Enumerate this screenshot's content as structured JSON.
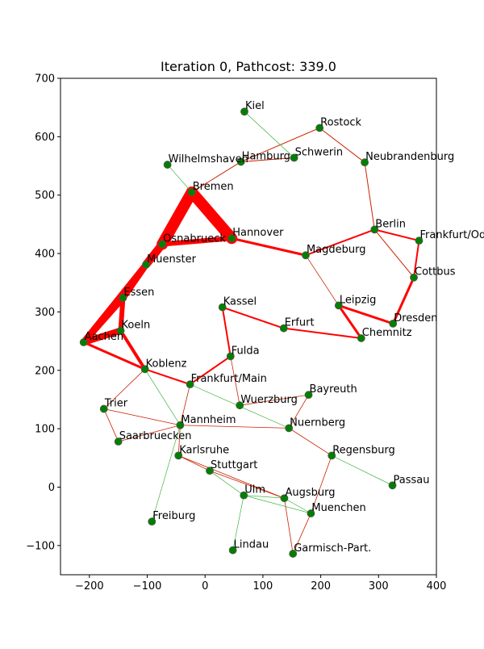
{
  "chart_data": {
    "type": "network",
    "title": "Iteration 0, Pathcost: 339.0",
    "xlim": [
      -250,
      400
    ],
    "ylim": [
      -150,
      700
    ],
    "x_ticks": [
      -200,
      -100,
      0,
      100,
      200,
      300,
      400
    ],
    "y_ticks": [
      -100,
      0,
      100,
      200,
      300,
      400,
      500,
      600,
      700
    ],
    "grid": false,
    "colors": {
      "node": "#008000",
      "node_edge": "#555555",
      "edge_main": "#cc2200",
      "edge_path": "#ff0000",
      "edge_green": "#22aa22"
    },
    "nodes": [
      {
        "name": "Kiel",
        "x": 68,
        "y": 643
      },
      {
        "name": "Rostock",
        "x": 198,
        "y": 615
      },
      {
        "name": "Hamburg",
        "x": 62,
        "y": 557
      },
      {
        "name": "Schwerin",
        "x": 154,
        "y": 564
      },
      {
        "name": "Neubrandenburg",
        "x": 276,
        "y": 556
      },
      {
        "name": "Wilhelmshaven",
        "x": -65,
        "y": 552
      },
      {
        "name": "Bremen",
        "x": -23,
        "y": 505
      },
      {
        "name": "Hannover",
        "x": 46,
        "y": 426
      },
      {
        "name": "Berlin",
        "x": 293,
        "y": 441
      },
      {
        "name": "Frankfurt/Oder",
        "x": 370,
        "y": 422
      },
      {
        "name": "Osnabrueck",
        "x": -74,
        "y": 416
      },
      {
        "name": "Magdeburg",
        "x": 174,
        "y": 397
      },
      {
        "name": "Muenster",
        "x": -102,
        "y": 381
      },
      {
        "name": "Cottbus",
        "x": 361,
        "y": 359
      },
      {
        "name": "Essen",
        "x": -142,
        "y": 324
      },
      {
        "name": "Kassel",
        "x": 30,
        "y": 308
      },
      {
        "name": "Leipzig",
        "x": 231,
        "y": 311
      },
      {
        "name": "Dresden",
        "x": 325,
        "y": 280
      },
      {
        "name": "Erfurt",
        "x": 136,
        "y": 272
      },
      {
        "name": "Chemnitz",
        "x": 270,
        "y": 255
      },
      {
        "name": "Koeln",
        "x": -146,
        "y": 268
      },
      {
        "name": "Aachen",
        "x": -210,
        "y": 248
      },
      {
        "name": "Fulda",
        "x": 44,
        "y": 224
      },
      {
        "name": "Koblenz",
        "x": -104,
        "y": 202
      },
      {
        "name": "Frankfurt/Main",
        "x": -26,
        "y": 176
      },
      {
        "name": "Bayreuth",
        "x": 179,
        "y": 158
      },
      {
        "name": "Wuerzburg",
        "x": 60,
        "y": 140
      },
      {
        "name": "Trier",
        "x": -175,
        "y": 134
      },
      {
        "name": "Mannheim",
        "x": -43,
        "y": 106
      },
      {
        "name": "Nuernberg",
        "x": 145,
        "y": 101
      },
      {
        "name": "Saarbruecken",
        "x": -150,
        "y": 78
      },
      {
        "name": "Karlsruhe",
        "x": -46,
        "y": 54
      },
      {
        "name": "Regensburg",
        "x": 219,
        "y": 54
      },
      {
        "name": "Stuttgart",
        "x": 8,
        "y": 28
      },
      {
        "name": "Passau",
        "x": 324,
        "y": 3
      },
      {
        "name": "Ulm",
        "x": 67,
        "y": -14
      },
      {
        "name": "Augsburg",
        "x": 137,
        "y": -19
      },
      {
        "name": "Muenchen",
        "x": 183,
        "y": -45
      },
      {
        "name": "Freiburg",
        "x": -92,
        "y": -59
      },
      {
        "name": "Lindau",
        "x": 48,
        "y": -108
      },
      {
        "name": "Garmisch-Part.",
        "x": 152,
        "y": -114
      }
    ],
    "edges": [
      {
        "from": "Bremen",
        "to": "Hannover",
        "w": 14,
        "c": "edge_path"
      },
      {
        "from": "Bremen",
        "to": "Osnabrueck",
        "w": 14,
        "c": "edge_path"
      },
      {
        "from": "Osnabrueck",
        "to": "Hannover",
        "w": 6,
        "c": "edge_path"
      },
      {
        "from": "Osnabrueck",
        "to": "Muenster",
        "w": 10,
        "c": "edge_path"
      },
      {
        "from": "Muenster",
        "to": "Essen",
        "w": 8,
        "c": "edge_path"
      },
      {
        "from": "Essen",
        "to": "Aachen",
        "w": 8,
        "c": "edge_path"
      },
      {
        "from": "Muenster",
        "to": "Aachen",
        "w": 8,
        "c": "edge_path"
      },
      {
        "from": "Aachen",
        "to": "Koeln",
        "w": 8,
        "c": "edge_path"
      },
      {
        "from": "Essen",
        "to": "Koeln",
        "w": 6,
        "c": "edge_path"
      },
      {
        "from": "Koeln",
        "to": "Koblenz",
        "w": 4,
        "c": "edge_path"
      },
      {
        "from": "Aachen",
        "to": "Koblenz",
        "w": 3,
        "c": "edge_path"
      },
      {
        "from": "Hannover",
        "to": "Magdeburg",
        "w": 3,
        "c": "edge_path"
      },
      {
        "from": "Magdeburg",
        "to": "Berlin",
        "w": 2,
        "c": "edge_path"
      },
      {
        "from": "Berlin",
        "to": "Frankfurt/Oder",
        "w": 2,
        "c": "edge_path"
      },
      {
        "from": "Frankfurt/Oder",
        "to": "Cottbus",
        "w": 2,
        "c": "edge_path"
      },
      {
        "from": "Cottbus",
        "to": "Dresden",
        "w": 3,
        "c": "edge_path"
      },
      {
        "from": "Dresden",
        "to": "Leipzig",
        "w": 3,
        "c": "edge_path"
      },
      {
        "from": "Leipzig",
        "to": "Chemnitz",
        "w": 3,
        "c": "edge_path"
      },
      {
        "from": "Chemnitz",
        "to": "Erfurt",
        "w": 2,
        "c": "edge_path"
      },
      {
        "from": "Erfurt",
        "to": "Kassel",
        "w": 2,
        "c": "edge_path"
      },
      {
        "from": "Kassel",
        "to": "Fulda",
        "w": 2,
        "c": "edge_path"
      },
      {
        "from": "Fulda",
        "to": "Frankfurt/Main",
        "w": 2,
        "c": "edge_path"
      },
      {
        "from": "Frankfurt/Main",
        "to": "Koblenz",
        "w": 2,
        "c": "edge_path"
      },
      {
        "from": "Berlin",
        "to": "Neubrandenburg",
        "w": 1,
        "c": "edge_main"
      },
      {
        "from": "Neubrandenburg",
        "to": "Rostock",
        "w": 1,
        "c": "edge_main"
      },
      {
        "from": "Rostock",
        "to": "Hamburg",
        "w": 1,
        "c": "edge_main"
      },
      {
        "from": "Hamburg",
        "to": "Schwerin",
        "w": 1,
        "c": "edge_main"
      },
      {
        "from": "Hamburg",
        "to": "Bremen",
        "w": 1,
        "c": "edge_main"
      },
      {
        "from": "Magdeburg",
        "to": "Leipzig",
        "w": 0.8,
        "c": "edge_main"
      },
      {
        "from": "Berlin",
        "to": "Cottbus",
        "w": 1,
        "c": "edge_main"
      },
      {
        "from": "Koblenz",
        "to": "Trier",
        "w": 0.8,
        "c": "edge_main"
      },
      {
        "from": "Trier",
        "to": "Saarbruecken",
        "w": 0.8,
        "c": "edge_main"
      },
      {
        "from": "Trier",
        "to": "Mannheim",
        "w": 0.8,
        "c": "edge_main"
      },
      {
        "from": "Saarbruecken",
        "to": "Mannheim",
        "w": 0.8,
        "c": "edge_main"
      },
      {
        "from": "Frankfurt/Main",
        "to": "Mannheim",
        "w": 0.8,
        "c": "edge_main"
      },
      {
        "from": "Fulda",
        "to": "Wuerzburg",
        "w": 0.8,
        "c": "edge_main"
      },
      {
        "from": "Wuerzburg",
        "to": "Bayreuth",
        "w": 0.8,
        "c": "edge_main"
      },
      {
        "from": "Bayreuth",
        "to": "Nuernberg",
        "w": 0.8,
        "c": "edge_main"
      },
      {
        "from": "Nuernberg",
        "to": "Regensburg",
        "w": 0.8,
        "c": "edge_main"
      },
      {
        "from": "Regensburg",
        "to": "Muenchen",
        "w": 0.8,
        "c": "edge_main"
      },
      {
        "from": "Mannheim",
        "to": "Nuernberg",
        "w": 0.8,
        "c": "edge_main"
      },
      {
        "from": "Mannheim",
        "to": "Karlsruhe",
        "w": 0.8,
        "c": "edge_main"
      },
      {
        "from": "Karlsruhe",
        "to": "Stuttgart",
        "w": 0.8,
        "c": "edge_main"
      },
      {
        "from": "Karlsruhe",
        "to": "Augsburg",
        "w": 0.8,
        "c": "edge_main"
      },
      {
        "from": "Stuttgart",
        "to": "Augsburg",
        "w": 0.8,
        "c": "edge_main"
      },
      {
        "from": "Augsburg",
        "to": "Garmisch-Part.",
        "w": 0.8,
        "c": "edge_main"
      },
      {
        "from": "Muenchen",
        "to": "Garmisch-Part.",
        "w": 0.8,
        "c": "edge_main"
      },
      {
        "from": "Kiel",
        "to": "Schwerin",
        "w": 0.6,
        "c": "edge_green"
      },
      {
        "from": "Wilhelmshaven",
        "to": "Bremen",
        "w": 0.6,
        "c": "edge_green"
      },
      {
        "from": "Koblenz",
        "to": "Mannheim",
        "w": 0.6,
        "c": "edge_green"
      },
      {
        "from": "Frankfurt/Main",
        "to": "Nuernberg",
        "w": 0.6,
        "c": "edge_green"
      },
      {
        "from": "Mannheim",
        "to": "Freiburg",
        "w": 0.6,
        "c": "edge_green"
      },
      {
        "from": "Stuttgart",
        "to": "Ulm",
        "w": 0.6,
        "c": "edge_green"
      },
      {
        "from": "Ulm",
        "to": "Lindau",
        "w": 0.6,
        "c": "edge_green"
      },
      {
        "from": "Ulm",
        "to": "Augsburg",
        "w": 0.6,
        "c": "edge_green"
      },
      {
        "from": "Ulm",
        "to": "Muenchen",
        "w": 0.6,
        "c": "edge_green"
      },
      {
        "from": "Augsburg",
        "to": "Muenchen",
        "w": 0.6,
        "c": "edge_green"
      },
      {
        "from": "Regensburg",
        "to": "Passau",
        "w": 0.6,
        "c": "edge_green"
      }
    ]
  }
}
